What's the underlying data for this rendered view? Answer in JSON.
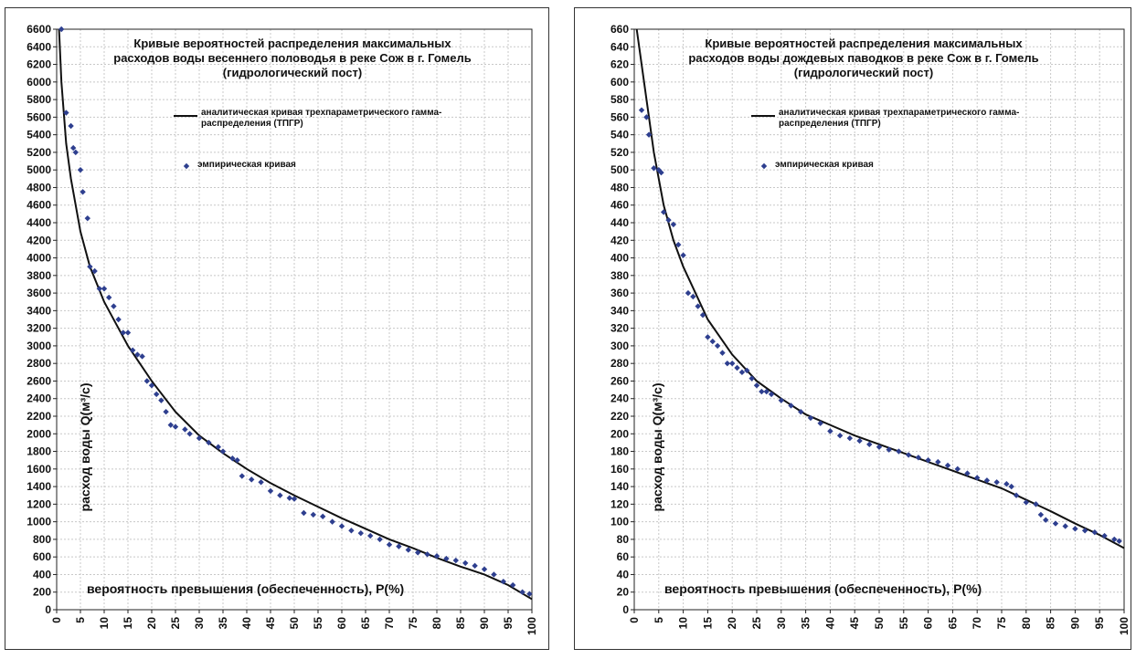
{
  "chart_data": [
    {
      "type": "scatter-line",
      "title": "Кривые вероятностей распределения максимальных расходов воды весеннего половодья в реке Сож в г. Гомель (гидрологический пост)",
      "x_label": "вероятность превышения (обеспеченность),  P(%)",
      "y_label": "расход воды Q(м³/с)",
      "xlim": [
        0,
        100
      ],
      "xticks": [
        0,
        5,
        10,
        15,
        20,
        25,
        30,
        35,
        40,
        45,
        50,
        55,
        60,
        65,
        70,
        75,
        80,
        85,
        90,
        95,
        100
      ],
      "ylim": [
        0,
        6600
      ],
      "yticks": [
        0,
        200,
        400,
        600,
        800,
        1000,
        1200,
        1400,
        1600,
        1800,
        2000,
        2200,
        2400,
        2600,
        2800,
        3000,
        3200,
        3400,
        3600,
        3800,
        4000,
        4200,
        4400,
        4600,
        4800,
        5000,
        5200,
        5400,
        5600,
        5800,
        6000,
        6200,
        6400,
        6600
      ],
      "grid": true,
      "series": [
        {
          "name": "аналитическая кривая трехпараметрического гамма-распределения (ТПГР)",
          "kind": "line",
          "color": "#111111",
          "x": [
            0.5,
            1,
            2,
            3,
            5,
            7,
            10,
            15,
            20,
            25,
            30,
            35,
            40,
            45,
            50,
            55,
            60,
            65,
            70,
            75,
            80,
            85,
            90,
            95,
            100
          ],
          "values": [
            6600,
            6000,
            5300,
            4900,
            4300,
            3900,
            3500,
            3000,
            2600,
            2250,
            1980,
            1780,
            1600,
            1440,
            1300,
            1170,
            1040,
            920,
            800,
            700,
            590,
            490,
            400,
            280,
            120
          ]
        },
        {
          "name": "эмпирическая кривая",
          "kind": "marker",
          "color": "#2e3f8f",
          "x": [
            1,
            2,
            3,
            3.5,
            4,
            5,
            5.5,
            6.5,
            7,
            8,
            9,
            10,
            11,
            12,
            13,
            14,
            15,
            16,
            17,
            18,
            19,
            20,
            21,
            22,
            23,
            24,
            25,
            27,
            28,
            30,
            32,
            34,
            35,
            37,
            38,
            39,
            41,
            43,
            45,
            47,
            49,
            50,
            52,
            54,
            56,
            58,
            60,
            62,
            64,
            66,
            68,
            70,
            72,
            74,
            76,
            78,
            80,
            82,
            84,
            86,
            88,
            90,
            92,
            94,
            96,
            98,
            99.5
          ],
          "values": [
            6600,
            5650,
            5500,
            5250,
            5200,
            5000,
            4750,
            4450,
            3900,
            3850,
            3650,
            3650,
            3550,
            3450,
            3300,
            3150,
            3150,
            2950,
            2900,
            2880,
            2600,
            2550,
            2450,
            2380,
            2250,
            2100,
            2080,
            2050,
            2000,
            1950,
            1900,
            1850,
            1800,
            1720,
            1700,
            1520,
            1480,
            1450,
            1350,
            1300,
            1270,
            1260,
            1100,
            1080,
            1060,
            1000,
            950,
            900,
            870,
            840,
            800,
            740,
            720,
            680,
            650,
            630,
            610,
            580,
            560,
            530,
            500,
            460,
            400,
            320,
            280,
            200,
            180
          ]
        }
      ]
    },
    {
      "type": "scatter-line",
      "title": "Кривые вероятностей распределения максимальных расходов воды дождевых паводков в реке Сож в г. Гомель (гидрологический пост)",
      "x_label": "вероятность превышения (обеспеченность),  P(%)",
      "y_label": "расход воды Q(м³/с)",
      "xlim": [
        0,
        100
      ],
      "xticks": [
        0,
        5,
        10,
        15,
        20,
        25,
        30,
        35,
        40,
        45,
        50,
        55,
        60,
        65,
        70,
        75,
        80,
        85,
        90,
        95,
        100
      ],
      "ylim": [
        0,
        660
      ],
      "yticks": [
        0,
        20,
        40,
        60,
        80,
        100,
        120,
        140,
        160,
        180,
        200,
        220,
        240,
        260,
        280,
        300,
        320,
        340,
        360,
        380,
        400,
        420,
        440,
        460,
        480,
        500,
        520,
        540,
        560,
        580,
        600,
        620,
        640,
        660
      ],
      "grid": true,
      "series": [
        {
          "name": "аналитическая кривая трехпараметрического гамма-распределения (ТПГР)",
          "kind": "line",
          "color": "#111111",
          "x": [
            0.5,
            2,
            4,
            6,
            8,
            10,
            15,
            20,
            25,
            30,
            35,
            40,
            45,
            50,
            55,
            60,
            65,
            70,
            75,
            80,
            85,
            90,
            95,
            100
          ],
          "values": [
            660,
            600,
            520,
            460,
            420,
            390,
            330,
            290,
            260,
            240,
            222,
            210,
            198,
            188,
            178,
            168,
            158,
            148,
            138,
            125,
            112,
            98,
            85,
            70
          ]
        },
        {
          "name": "эмпирическая кривая",
          "kind": "marker",
          "color": "#2e3f8f",
          "x": [
            1.5,
            2.5,
            3,
            4,
            5,
            5.5,
            6,
            7,
            8,
            9,
            10,
            11,
            12,
            13,
            14,
            15,
            16,
            17,
            18,
            19,
            20,
            21,
            22,
            23,
            24,
            25,
            26,
            27,
            28,
            30,
            32,
            34,
            36,
            38,
            40,
            42,
            44,
            46,
            48,
            50,
            52,
            54,
            56,
            58,
            60,
            62,
            64,
            66,
            68,
            70,
            72,
            74,
            76,
            77,
            78,
            80,
            82,
            83,
            84,
            86,
            88,
            90,
            92,
            94,
            96,
            98,
            99
          ],
          "values": [
            568,
            560,
            540,
            502,
            500,
            497,
            452,
            443,
            438,
            415,
            403,
            360,
            356,
            345,
            335,
            310,
            305,
            300,
            292,
            280,
            280,
            275,
            270,
            272,
            263,
            255,
            248,
            248,
            245,
            238,
            232,
            225,
            218,
            212,
            203,
            198,
            195,
            192,
            188,
            185,
            182,
            180,
            176,
            173,
            170,
            168,
            164,
            160,
            155,
            150,
            147,
            145,
            143,
            140,
            130,
            122,
            120,
            108,
            102,
            98,
            95,
            92,
            90,
            88,
            84,
            80,
            78
          ]
        }
      ]
    }
  ]
}
